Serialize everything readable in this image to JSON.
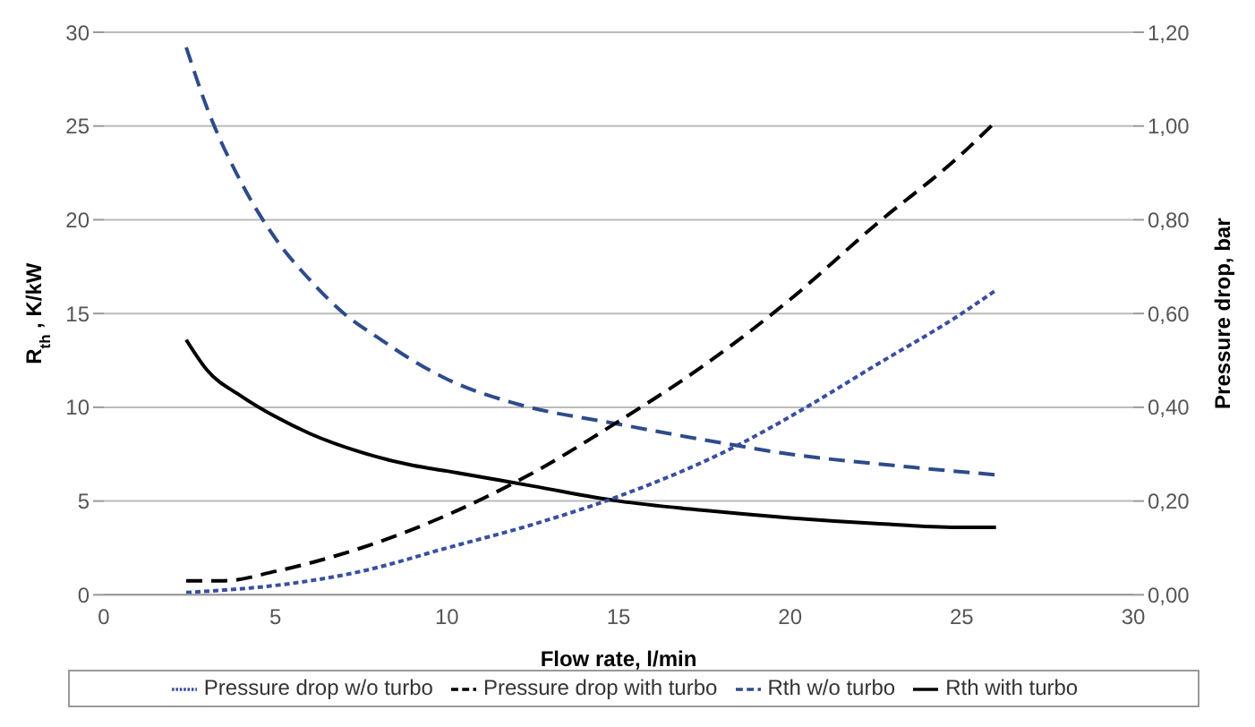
{
  "chart_data": {
    "type": "line",
    "xlabel": "Flow rate, l/min",
    "ylabel": "R$_{th}$, K/kW",
    "y2label": "Pressure drop, bar",
    "xlim": [
      0,
      30
    ],
    "xticks": [
      0,
      5,
      10,
      15,
      20,
      25,
      30
    ],
    "ylim": [
      0,
      30
    ],
    "yticks": [
      0,
      5,
      10,
      15,
      20,
      25,
      30
    ],
    "y2lim": [
      0,
      1.2
    ],
    "y2ticks": [
      {
        "value": 0,
        "label": "0,00"
      },
      {
        "value": 0.2,
        "label": "0,20"
      },
      {
        "value": 0.4,
        "label": "0,40"
      },
      {
        "value": 0.6,
        "label": "0,60"
      },
      {
        "value": 0.8,
        "label": "0,80"
      },
      {
        "value": 1.0,
        "label": "1,00"
      },
      {
        "value": 1.2,
        "label": "1,20"
      }
    ],
    "grid": "y",
    "legend": "bottom",
    "marker": "none",
    "series": [
      {
        "name": "Rth with turbo",
        "color": "#000000",
        "line_style": "solid",
        "x": [
          2.4,
          3,
          4,
          5,
          6,
          7.5,
          9,
          10,
          12.5,
          15,
          17.5,
          20,
          22.5,
          25,
          26
        ],
        "values": [
          13.6,
          12,
          10.6,
          9.5,
          8.6,
          7.6,
          6.9,
          6.6,
          5.8,
          5.0,
          4.5,
          4.1,
          3.8,
          3.6,
          3.6
        ]
      },
      {
        "name": "Rth w/o turbo",
        "color": "#2e4b8b",
        "line_style": "dashed",
        "x": [
          2.4,
          3,
          4,
          5,
          6,
          7,
          8,
          9,
          10,
          12,
          15,
          18,
          20,
          23,
          26
        ],
        "values": [
          29.2,
          26,
          22,
          19,
          16.8,
          15,
          13.7,
          12.5,
          11.5,
          10.2,
          9.1,
          8.1,
          7.5,
          6.9,
          6.4
        ]
      },
      {
        "name": "Pressure drop with turbo",
        "color": "#000000",
        "line_style": "dashed",
        "axis": "y2",
        "x": [
          2.4,
          3.5,
          5,
          7.5,
          10,
          12.5,
          15,
          17.5,
          20,
          22.5,
          25,
          26
        ],
        "values": [
          0.03,
          0.03,
          0.05,
          0.1,
          0.17,
          0.26,
          0.37,
          0.49,
          0.63,
          0.79,
          0.94,
          1.01
        ]
      },
      {
        "name": "Pressure drop w/o turbo",
        "color": "#3a4fa0",
        "line_style": "dotted",
        "axis": "y2",
        "x": [
          2.4,
          3.5,
          5,
          7.5,
          10,
          12.5,
          15,
          18.5,
          20,
          22.5,
          25,
          26
        ],
        "values": [
          0.005,
          0.01,
          0.02,
          0.05,
          0.1,
          0.15,
          0.21,
          0.32,
          0.38,
          0.49,
          0.6,
          0.65
        ]
      }
    ]
  }
}
